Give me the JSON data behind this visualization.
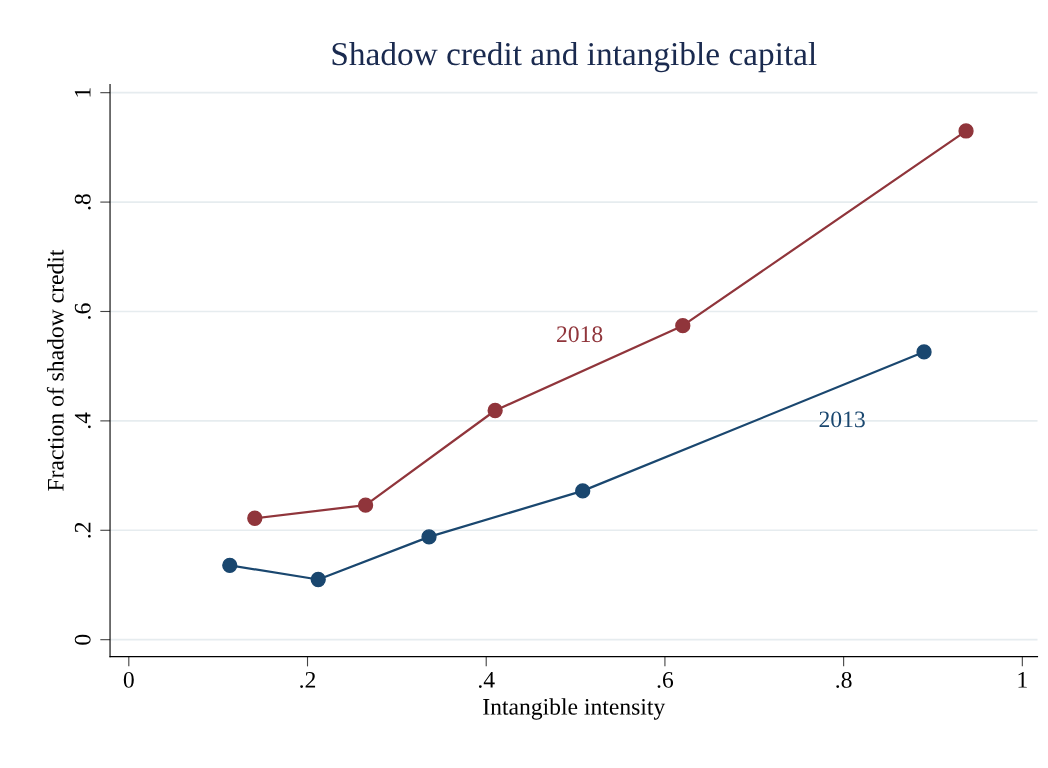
{
  "chart_data": {
    "type": "line",
    "title": "Shadow credit and intangible capital",
    "xlabel": "Intangible intensity",
    "ylabel": "Fraction of shadow credit",
    "series": [
      {
        "name": "2018",
        "color": "#90353b",
        "x": [
          0.141,
          0.265,
          0.41,
          0.62,
          0.937
        ],
        "values": [
          0.222,
          0.246,
          0.419,
          0.574,
          0.93
        ]
      },
      {
        "name": "2013",
        "color": "#1a476f",
        "x": [
          0.113,
          0.212,
          0.336,
          0.508,
          0.89
        ],
        "values": [
          0.136,
          0.11,
          0.188,
          0.272,
          0.526
        ]
      }
    ],
    "xlim": [
      -0.021,
      1.017
    ],
    "ylim": [
      -0.031,
      1.015
    ],
    "xticks": [
      0,
      {
        "value": 0.2,
        "label": ".2"
      },
      {
        "value": 0.4,
        "label": ".4"
      },
      {
        "value": 0.6,
        "label": ".6"
      },
      {
        "value": 0.8,
        "label": ".8"
      },
      1
    ],
    "yticks": [
      0,
      {
        "value": 0.2,
        "label": ".2"
      },
      {
        "value": 0.4,
        "label": ".4"
      },
      {
        "value": 0.6,
        "label": ".6"
      },
      {
        "value": 0.8,
        "label": ".8"
      },
      1
    ],
    "grid": "y",
    "marker": "circle",
    "line_style": "solid",
    "legend": false
  }
}
